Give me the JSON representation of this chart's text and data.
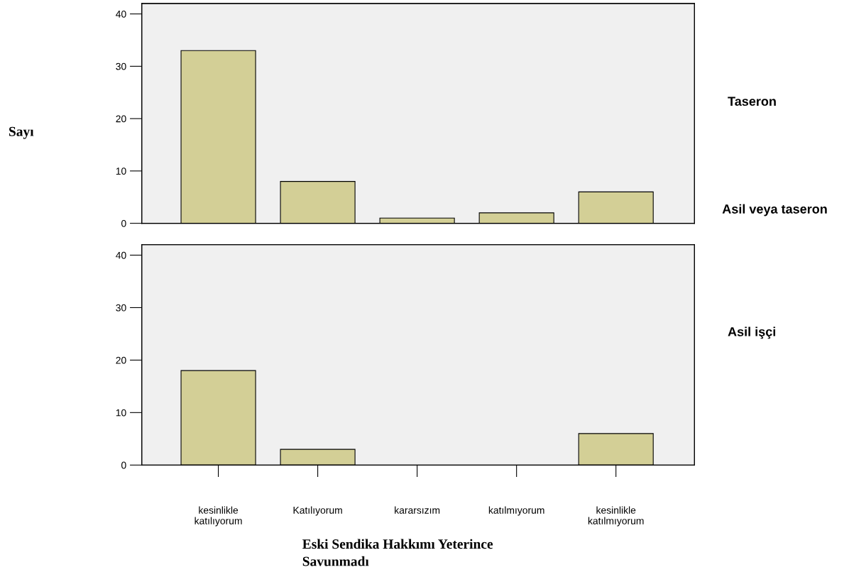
{
  "chart_data": [
    {
      "type": "bar",
      "y2label": "Taseron",
      "ylabel": "Sayı",
      "annotations": [
        "Asil veya taseron"
      ],
      "categories": [
        null,
        null,
        null,
        null,
        null
      ],
      "values": [
        33,
        8,
        1,
        2,
        6
      ],
      "color": "#d3cf96",
      "ylim": [
        0,
        42
      ],
      "yticks": [
        0,
        10,
        20,
        30,
        40
      ],
      "grid": false,
      "tick_labels": "y"
    },
    {
      "type": "bar",
      "y2label": "Asil işçi",
      "xlabel": "Eski Sendika Hakkımı Yeterince\nSavunmadı",
      "categories": [
        "kesinlikle\nkatılıyorum",
        "Katılıyorum",
        "kararsızım",
        "katılmıyorum",
        "kesinlikle\nkatılmıyorum"
      ],
      "values": [
        18,
        3,
        0,
        0,
        6
      ],
      "color": "#d3cf96",
      "ylim": [
        0,
        42
      ],
      "yticks": [
        0,
        10,
        20,
        30,
        40
      ],
      "grid": false
    }
  ]
}
